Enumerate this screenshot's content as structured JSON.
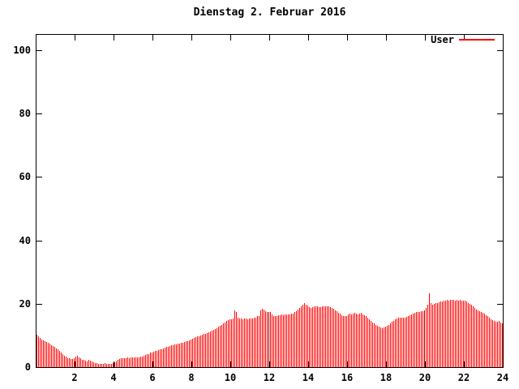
{
  "window": {
    "background": "#ffffff",
    "foreground": "#000000"
  },
  "chart_data": {
    "type": "bar",
    "style": "impulses",
    "title": "Dienstag 2. Februar 2016",
    "legend": {
      "label": "User",
      "position": "top-right",
      "line_color": "#ff0000"
    },
    "xlabel": "",
    "ylabel": "",
    "x_unit": "hour of day",
    "sample_interval_minutes": 5,
    "samples_per_hour": 12,
    "xlim": [
      0,
      24
    ],
    "ylim": [
      0,
      105
    ],
    "xticks": [
      2,
      4,
      6,
      8,
      10,
      12,
      14,
      16,
      18,
      20,
      22,
      24
    ],
    "yticks": [
      0,
      20,
      40,
      60,
      80,
      100
    ],
    "grid": false,
    "bar_color": "#ff0000",
    "dark_bar_color": "#990000",
    "dark_indexes": [
      143,
      239
    ],
    "values": [
      10.2,
      9.6,
      9.2,
      8.8,
      8.5,
      8.2,
      8.0,
      7.8,
      7.4,
      7.0,
      6.7,
      6.3,
      5.9,
      5.5,
      5.0,
      4.5,
      4.0,
      3.6,
      3.2,
      2.9,
      2.7,
      2.5,
      2.6,
      2.8,
      3.3,
      3.5,
      3.1,
      2.7,
      2.4,
      2.2,
      2.0,
      1.9,
      2.2,
      2.0,
      1.8,
      1.6,
      1.4,
      1.2,
      1.1,
      1.0,
      1.1,
      1.0,
      1.2,
      1.0,
      0.9,
      1.1,
      1.0,
      1.2,
      1.5,
      1.9,
      2.3,
      2.6,
      2.8,
      2.9,
      2.8,
      2.9,
      3.0,
      2.9,
      3.0,
      3.0,
      3.0,
      3.1,
      3.0,
      3.1,
      3.2,
      3.4,
      3.6,
      3.8,
      4.0,
      4.2,
      4.5,
      4.7,
      4.9,
      5.1,
      5.2,
      5.4,
      5.6,
      5.7,
      5.9,
      6.1,
      6.3,
      6.4,
      6.6,
      6.8,
      6.9,
      7.1,
      7.2,
      7.4,
      7.5,
      7.7,
      7.8,
      8.0,
      8.1,
      8.3,
      8.5,
      8.7,
      8.9,
      9.1,
      9.4,
      9.6,
      9.8,
      10.0,
      10.2,
      10.4,
      10.6,
      10.8,
      11.0,
      11.2,
      11.5,
      11.8,
      12.1,
      12.4,
      12.7,
      13.0,
      13.3,
      13.7,
      14.1,
      14.5,
      14.8,
      15.0,
      15.2,
      15.3,
      18.0,
      17.4,
      15.5,
      15.4,
      15.3,
      15.2,
      15.3,
      15.3,
      15.2,
      15.3,
      15.3,
      15.4,
      15.5,
      15.7,
      16.0,
      16.2,
      17.9,
      18.3,
      18.1,
      17.6,
      17.5,
      17.5,
      17.3,
      16.6,
      16.2,
      16.0,
      16.2,
      16.4,
      16.3,
      16.5,
      16.4,
      16.6,
      16.5,
      16.7,
      16.6,
      16.8,
      17.0,
      17.4,
      17.7,
      18.1,
      18.6,
      19.2,
      19.8,
      20.2,
      19.8,
      19.4,
      19.0,
      18.7,
      18.9,
      19.2,
      19.3,
      19.1,
      18.8,
      19.0,
      19.2,
      19.3,
      19.1,
      19.3,
      19.2,
      19.0,
      18.7,
      18.4,
      18.0,
      17.6,
      17.2,
      16.8,
      16.4,
      16.1,
      16.0,
      16.2,
      16.5,
      16.8,
      16.6,
      16.9,
      17.1,
      16.8,
      16.5,
      17.0,
      17.2,
      16.7,
      16.3,
      16.0,
      15.6,
      15.1,
      14.6,
      14.1,
      13.7,
      13.3,
      13.0,
      12.7,
      12.5,
      12.3,
      12.5,
      12.8,
      13.1,
      13.4,
      13.8,
      14.2,
      14.6,
      15.0,
      15.3,
      15.6,
      15.7,
      15.6,
      15.5,
      15.6,
      15.8,
      16.1,
      16.4,
      16.7,
      17.0,
      17.2,
      17.4,
      17.5,
      17.5,
      17.6,
      17.7,
      18.0,
      18.6,
      19.6,
      23.4,
      20.2,
      19.8,
      20.0,
      20.3,
      20.1,
      20.4,
      20.6,
      20.7,
      20.9,
      21.0,
      21.1,
      20.9,
      21.2,
      21.3,
      21.1,
      21.0,
      21.2,
      21.0,
      21.1,
      20.9,
      21.0,
      20.9,
      20.6,
      20.3,
      20.0,
      19.6,
      19.1,
      18.6,
      18.2,
      17.9,
      17.6,
      17.3,
      17.1,
      16.8,
      16.4,
      16.0,
      15.6,
      15.2,
      14.9,
      14.6,
      14.4,
      14.2,
      14.5,
      14.1,
      13.8
    ]
  }
}
